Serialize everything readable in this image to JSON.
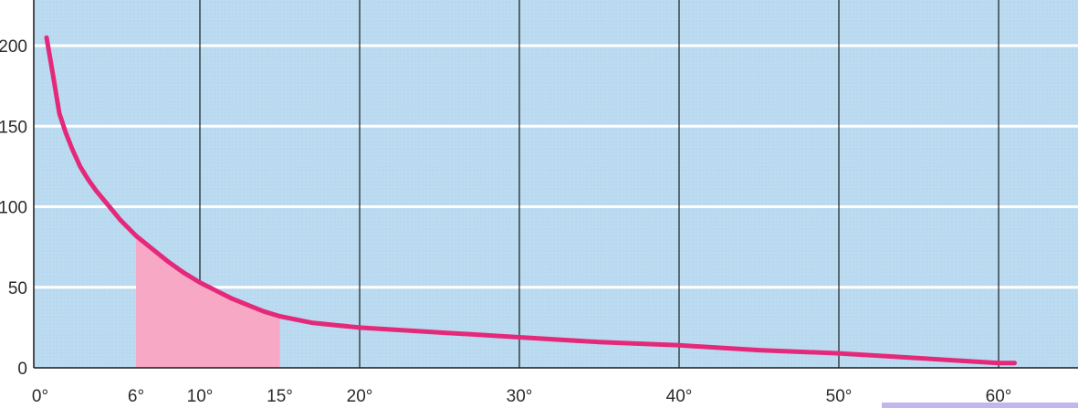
{
  "chart_data": {
    "type": "line",
    "title": "",
    "xlabel": "",
    "ylabel": "",
    "xlim": [
      0,
      65
    ],
    "ylim": [
      0,
      225
    ],
    "grid": true,
    "x_ticks": [
      {
        "value": 0,
        "label": "0°"
      },
      {
        "value": 6,
        "label": "6°"
      },
      {
        "value": 10,
        "label": "10°"
      },
      {
        "value": 15,
        "label": "15°"
      },
      {
        "value": 20,
        "label": "20°"
      },
      {
        "value": 30,
        "label": "30°"
      },
      {
        "value": 40,
        "label": "40°"
      },
      {
        "value": 50,
        "label": "50°"
      },
      {
        "value": 60,
        "label": "60°"
      }
    ],
    "x_gridlines": [
      10,
      20,
      30,
      40,
      50,
      60
    ],
    "y_ticks": [
      {
        "value": 0,
        "label": "0"
      },
      {
        "value": 50,
        "label": "50"
      },
      {
        "value": 100,
        "label": "100"
      },
      {
        "value": 150,
        "label": "150"
      },
      {
        "value": 200,
        "label": "200"
      }
    ],
    "series": [
      {
        "x": [
          0.4,
          0.8,
          1.2,
          1.6,
          2,
          2.5,
          3,
          3.5,
          4,
          4.5,
          5,
          6,
          7,
          8,
          9,
          10,
          11,
          12,
          13,
          14,
          15,
          17,
          20,
          25,
          30,
          35,
          40,
          45,
          50,
          55,
          60,
          61
        ],
        "y": [
          205,
          182,
          158,
          146,
          136,
          125,
          117,
          110,
          104,
          98,
          92,
          82,
          74,
          66,
          59,
          53,
          48,
          43,
          39,
          35,
          32,
          28,
          25,
          22,
          19,
          16,
          14,
          11,
          9,
          6,
          3,
          3
        ],
        "color": "#e5297a"
      }
    ],
    "shaded_region": {
      "x_start": 6,
      "x_end": 15,
      "color": "#f7a8c4"
    },
    "colors": {
      "plot_background": "#b8d9ef",
      "horizontal_grid": "#ffffff",
      "vertical_grid": "#1a1a1a",
      "axis": "#1a1a1a",
      "curve": "#e5297a",
      "shade": "#f7a8c4",
      "corner_box": "#c3b6ef"
    }
  }
}
